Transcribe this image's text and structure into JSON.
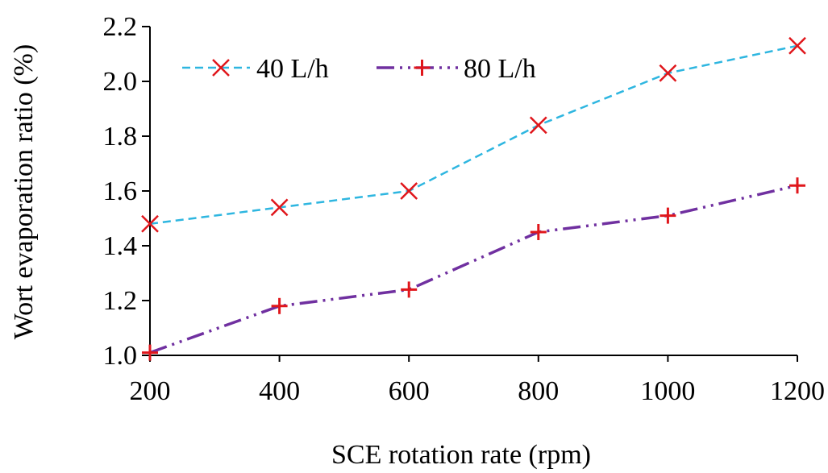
{
  "chart_data": {
    "type": "line",
    "x": [
      200,
      400,
      600,
      800,
      1000,
      1200
    ],
    "xticks": [
      "200",
      "400",
      "600",
      "800",
      "1000",
      "1200"
    ],
    "yticks": [
      "1.0",
      "1.2",
      "1.4",
      "1.6",
      "1.8",
      "2.0",
      "2.2"
    ],
    "ylim": [
      1.0,
      2.2
    ],
    "xlim": [
      200,
      1200
    ],
    "xlabel": "SCE rotation rate (rpm)",
    "ylabel": "Wort evaporation ratio (%)",
    "grid": false,
    "legend_position": "top-left",
    "series": [
      {
        "name": "40 L/h",
        "values": [
          1.48,
          1.54,
          1.6,
          1.84,
          2.03,
          2.13
        ],
        "line_color": "#2eb6e0",
        "line_style": "dashed",
        "marker": "x",
        "marker_color": "#e0161b"
      },
      {
        "name": "80 L/h",
        "values": [
          1.01,
          1.18,
          1.24,
          1.45,
          1.51,
          1.62
        ],
        "line_color": "#7030a0",
        "line_style": "dash-dot-dot",
        "marker": "plus",
        "marker_color": "#e0161b"
      }
    ]
  }
}
